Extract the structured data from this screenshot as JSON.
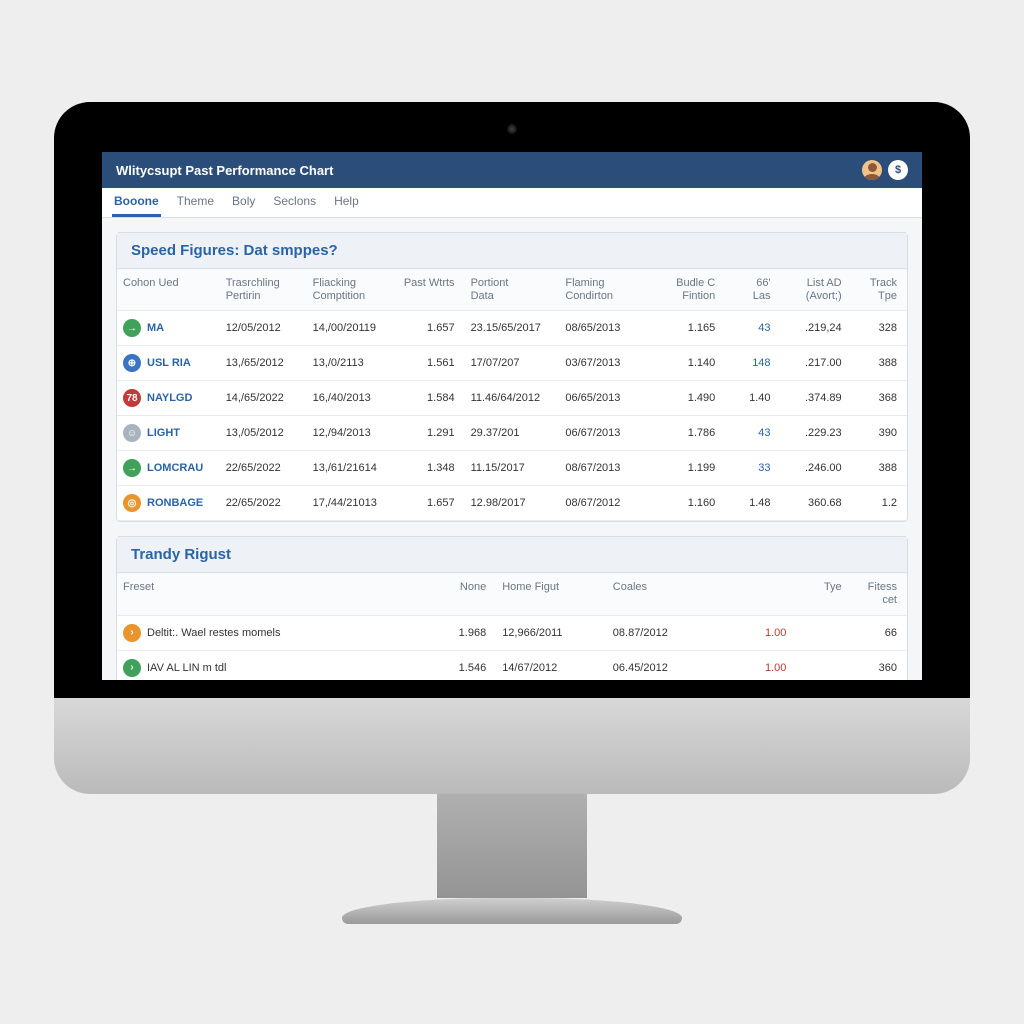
{
  "colors": {
    "titlebar_bg": "#2a4d7a",
    "accent": "#2a64a6",
    "page_bg": "#f4f6f8",
    "border": "#d9dee4",
    "header_bg": "#eef2f6",
    "text_muted": "#6a7684",
    "red": "#c0392b"
  },
  "titlebar": {
    "title": "Wlitycsupt Past Performance Chart",
    "badge_glyph": "$"
  },
  "tabs": [
    {
      "label": "Booone",
      "active": true
    },
    {
      "label": "Theme",
      "active": false
    },
    {
      "label": "Boly",
      "active": false
    },
    {
      "label": "Seclons",
      "active": false
    },
    {
      "label": "Help",
      "active": false
    }
  ],
  "panelA": {
    "title": "Speed Figures: Dat smppes?",
    "columns": [
      [
        "Cohon Ued",
        ""
      ],
      [
        "Trasrchling",
        "Pertirin"
      ],
      [
        "Fliacking",
        "Comptition"
      ],
      [
        "Past Wtrts",
        ""
      ],
      [
        "Portiont",
        "Data"
      ],
      [
        "Flaming",
        "Condirton"
      ],
      [
        "Budle C",
        "Fintion"
      ],
      [
        "66'",
        "Las"
      ],
      [
        "List AD",
        "(Avort;)"
      ],
      [
        "Track",
        "Tpe"
      ]
    ],
    "rows": [
      {
        "icon_bg": "#3fa15a",
        "icon_glyph": "→",
        "name": "MA",
        "c1": "12/05/2012",
        "c2": "14,/00/20119",
        "c3": "1.657",
        "c4": "23.15/65/2017",
        "c5": "08/65/2013",
        "c6": "1.165",
        "c7": "43",
        "c7_link": true,
        "c8": ".219,24",
        "c9": "328"
      },
      {
        "icon_bg": "#3a74c2",
        "icon_glyph": "⊕",
        "name": "USL RIA",
        "c1": "13,/65/2012",
        "c2": "13,/0/2113",
        "c3": "1.561",
        "c4": "17/07/207",
        "c5": "03/67/2013",
        "c6": "1.140",
        "c7": "148",
        "c7_link": true,
        "c8": ".217.00",
        "c9": "388"
      },
      {
        "icon_bg": "#c23a3a",
        "icon_glyph": "78",
        "name": "NAYLGD",
        "c1": "14,/65/2022",
        "c2": "16,/40/2013",
        "c3": "1.584",
        "c4": "11.46/64/2012",
        "c5": "06/65/2013",
        "c6": "1.490",
        "c7": "1.40",
        "c7_link": false,
        "c8": ".374.89",
        "c9": "368"
      },
      {
        "icon_bg": "#a9b3bf",
        "icon_glyph": "☺",
        "name": "LIGHT",
        "c1": "13,/05/2012",
        "c2": "12,/94/2013",
        "c3": "1.291",
        "c4": "29.37/201",
        "c5": "06/67/2013",
        "c6": "1.786",
        "c7": "43",
        "c7_link": true,
        "c8": ".229.23",
        "c9": "390"
      },
      {
        "icon_bg": "#3fa15a",
        "icon_glyph": "→",
        "name": "LOMCRAU",
        "c1": "22/65/2022",
        "c2": "13,/61/21614",
        "c3": "1.348",
        "c4": "11.15/2017",
        "c5": "08/67/2013",
        "c6": "1.199",
        "c7": "33",
        "c7_link": true,
        "c8": ".246.00",
        "c9": "388"
      },
      {
        "icon_bg": "#e8952e",
        "icon_glyph": "◎",
        "name": "RONBAGE",
        "c1": "22/65/2022",
        "c2": "17,/44/21013",
        "c3": "1.657",
        "c4": "12.98/2017",
        "c5": "08/67/2012",
        "c6": "1.160",
        "c7": "1.48",
        "c7_link": false,
        "c8": "360.68",
        "c9": "1.2"
      }
    ]
  },
  "panelB": {
    "title": "Trandy Rigust",
    "columns": [
      [
        "Freset",
        ""
      ],
      [
        "None",
        ""
      ],
      [
        "Home Figut",
        ""
      ],
      [
        "Coales",
        ""
      ],
      [
        "",
        ""
      ],
      [
        "Tye",
        ""
      ],
      [
        "Fitess",
        "cet"
      ]
    ],
    "rows": [
      {
        "icon_bg": "#e8952e",
        "icon_glyph": "›",
        "name": "Deltit:. Wael restes momels",
        "c1": "1.968",
        "c2": "12,966/2011",
        "c3": "08.87/2012",
        "c4": "1.00",
        "c4_red": true,
        "c5": "",
        "c6": "66"
      },
      {
        "icon_bg": "#3fa15a",
        "icon_glyph": "›",
        "name": "IAV AL LIN m tdl",
        "c1": "1.546",
        "c2": "14/67/2012",
        "c3": "06.45/2012",
        "c4": "1.00",
        "c4_red": true,
        "c5": "",
        "c6": "360"
      }
    ]
  }
}
